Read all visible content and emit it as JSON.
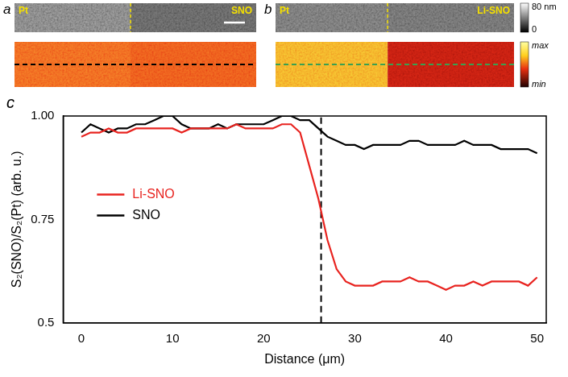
{
  "figure": {
    "panels": [
      {
        "letter": "a",
        "left_label": "Pt",
        "right_label": "SNO"
      },
      {
        "letter": "b",
        "left_label": "Pt",
        "right_label": "Li-SNO"
      }
    ],
    "height_scale": {
      "range": [
        0,
        80
      ],
      "ticks": [
        {
          "value": 80,
          "label": "80 nm"
        },
        {
          "value": 0,
          "label": "0"
        }
      ]
    },
    "signal_scale": {
      "top": "max",
      "bottom": "min"
    }
  },
  "chart_data": {
    "letter": "c",
    "type": "line",
    "xlabel": "Distance (μm)",
    "ylabel": "S₂(SNO)/S₂(Pt) (arb. u.)",
    "x": [
      0,
      1,
      2,
      3,
      4,
      5,
      6,
      7,
      8,
      9,
      10,
      11,
      12,
      13,
      14,
      15,
      16,
      17,
      18,
      19,
      20,
      21,
      22,
      23,
      24,
      25,
      26,
      27,
      28,
      29,
      30,
      31,
      32,
      33,
      34,
      35,
      36,
      37,
      38,
      39,
      40,
      41,
      42,
      43,
      44,
      45,
      46,
      47,
      48,
      49,
      50
    ],
    "series": [
      {
        "name": "Li-SNO",
        "color": "#e8231f",
        "values": [
          0.95,
          0.96,
          0.96,
          0.97,
          0.96,
          0.96,
          0.97,
          0.97,
          0.97,
          0.97,
          0.97,
          0.96,
          0.97,
          0.97,
          0.97,
          0.97,
          0.97,
          0.98,
          0.97,
          0.97,
          0.97,
          0.97,
          0.98,
          0.98,
          0.96,
          0.88,
          0.8,
          0.7,
          0.63,
          0.6,
          0.59,
          0.59,
          0.59,
          0.6,
          0.6,
          0.6,
          0.61,
          0.6,
          0.6,
          0.59,
          0.58,
          0.59,
          0.59,
          0.6,
          0.59,
          0.6,
          0.6,
          0.6,
          0.6,
          0.59,
          0.61
        ]
      },
      {
        "name": "SNO",
        "color": "#000000",
        "values": [
          0.96,
          0.98,
          0.97,
          0.96,
          0.97,
          0.97,
          0.98,
          0.98,
          0.99,
          1.0,
          1.0,
          0.98,
          0.97,
          0.97,
          0.97,
          0.98,
          0.97,
          0.98,
          0.98,
          0.98,
          0.98,
          0.99,
          1.0,
          1.0,
          0.99,
          0.99,
          0.97,
          0.95,
          0.94,
          0.93,
          0.93,
          0.92,
          0.93,
          0.93,
          0.93,
          0.93,
          0.94,
          0.94,
          0.93,
          0.93,
          0.93,
          0.93,
          0.94,
          0.93,
          0.93,
          0.93,
          0.92,
          0.92,
          0.92,
          0.92,
          0.91
        ]
      }
    ],
    "vline": 26.3,
    "xlim": [
      -2,
      51
    ],
    "xticks": [
      0,
      10,
      20,
      30,
      40,
      50
    ],
    "ylim": [
      0.5,
      1.0
    ],
    "yticks": [
      0.5,
      0.75,
      {
        "value": 1,
        "label": "1.00"
      }
    ],
    "grid": false,
    "legend": "left"
  }
}
